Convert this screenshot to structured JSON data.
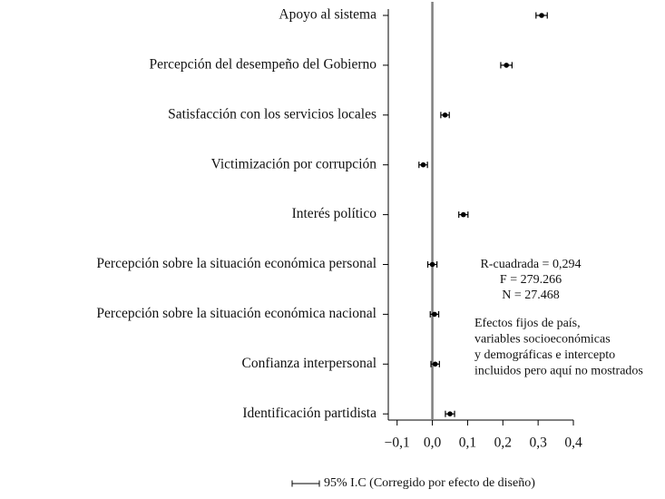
{
  "chart_data": {
    "type": "coefficient",
    "categories": [
      "Apoyo al sistema",
      "Percepción del desempeño del Gobierno",
      "Satisfacción con los servicios locales",
      "Victimización por corrupción",
      "Interés político",
      "Percepción sobre la situación económica personal",
      "Percepción sobre la situación económica nacional",
      "Confianza interpersonal",
      "Identificación partidista"
    ],
    "values": [
      0.31,
      0.21,
      0.036,
      -0.026,
      0.088,
      0.0,
      0.006,
      0.008,
      0.05
    ],
    "errors": [
      0.016,
      0.016,
      0.012,
      0.012,
      0.013,
      0.013,
      0.012,
      0.012,
      0.013
    ],
    "color": "#000000",
    "xlim": [
      -0.125,
      0.4
    ],
    "xticks": [
      {
        "value": -0.1,
        "label": "−0,1"
      },
      {
        "value": 0.0,
        "label": "0,0"
      },
      {
        "value": 0.1,
        "label": "0,1"
      },
      {
        "value": 0.2,
        "label": "0,2"
      },
      {
        "value": 0.3,
        "label": "0,3"
      },
      {
        "value": 0.4,
        "label": "0,4"
      }
    ],
    "reference_line": 0,
    "reference_color": "#808080",
    "stats": [
      "R-cuadrada = 0,294",
      "F = 279.266",
      "N = 27.468"
    ],
    "note": [
      "Efectos fijos de país,",
      "variables socioeconómicas",
      "y demográficas e intercepto",
      "incluidos pero aquí no mostrados"
    ],
    "legend": "95% I.C (Corregido por efecto de diseño)"
  }
}
